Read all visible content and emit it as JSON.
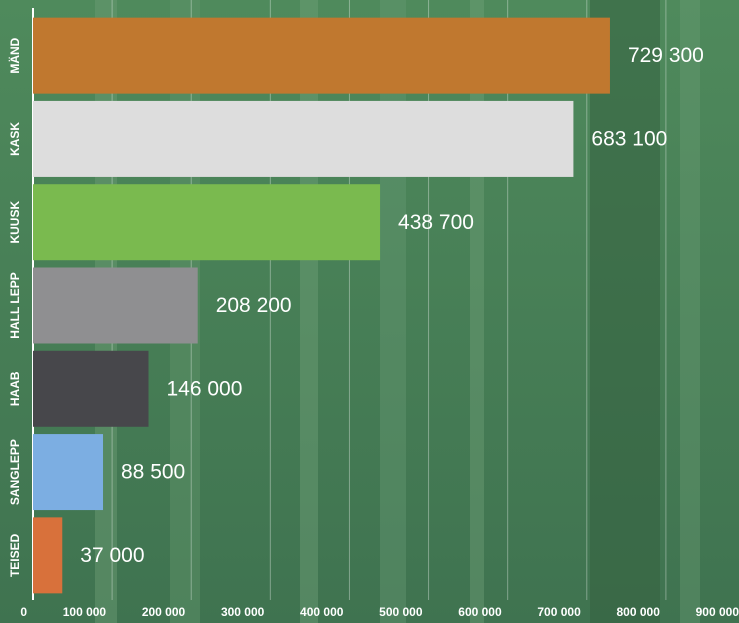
{
  "chart_data": {
    "type": "bar",
    "orientation": "horizontal",
    "categories": [
      "MÄND",
      "KASK",
      "KUUSK",
      "HALL LEPP",
      "HAAB",
      "SANGLEPP",
      "TEISED"
    ],
    "values": [
      729300,
      683100,
      438700,
      208200,
      146000,
      88500,
      37000
    ],
    "value_labels": [
      "729 300",
      "683 100",
      "438 700",
      "208 200",
      "146 000",
      "88 500",
      "37 000"
    ],
    "colors": [
      "#c0782f",
      "#dddddd",
      "#7aba4f",
      "#8f8f91",
      "#47474b",
      "#7caee2",
      "#d8713b"
    ],
    "xlim": [
      0,
      900000
    ],
    "xticks": [
      0,
      {
        "value": 100000,
        "label": "100 000"
      },
      {
        "value": 200000,
        "label": "200 000"
      },
      {
        "value": 300000,
        "label": "300 000"
      },
      {
        "value": 400000,
        "label": "400 000"
      },
      {
        "value": 500000,
        "label": "500 000"
      },
      {
        "value": 600000,
        "label": "600 000"
      },
      {
        "value": 700000,
        "label": "700 000"
      },
      {
        "value": 800000,
        "label": "800 000"
      },
      {
        "value": 900000,
        "label": "900 000"
      }
    ],
    "grid": true
  }
}
